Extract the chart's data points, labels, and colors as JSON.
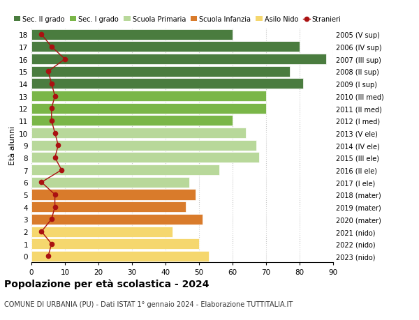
{
  "ages": [
    18,
    17,
    16,
    15,
    14,
    13,
    12,
    11,
    10,
    9,
    8,
    7,
    6,
    5,
    4,
    3,
    2,
    1,
    0
  ],
  "bar_values": [
    60,
    80,
    88,
    77,
    81,
    70,
    70,
    60,
    64,
    67,
    68,
    56,
    47,
    49,
    46,
    51,
    42,
    50,
    53
  ],
  "stranieri": [
    3,
    6,
    10,
    5,
    6,
    7,
    6,
    6,
    7,
    8,
    7,
    9,
    3,
    7,
    7,
    6,
    3,
    6,
    5
  ],
  "bar_colors": [
    "#4a7c3f",
    "#4a7c3f",
    "#4a7c3f",
    "#4a7c3f",
    "#4a7c3f",
    "#7ab648",
    "#7ab648",
    "#7ab648",
    "#b8d89a",
    "#b8d89a",
    "#b8d89a",
    "#b8d89a",
    "#b8d89a",
    "#d97b2b",
    "#d97b2b",
    "#d97b2b",
    "#f5d76e",
    "#f5d76e",
    "#f5d76e"
  ],
  "right_labels": [
    "2005 (V sup)",
    "2006 (IV sup)",
    "2007 (III sup)",
    "2008 (II sup)",
    "2009 (I sup)",
    "2010 (III med)",
    "2011 (II med)",
    "2012 (I med)",
    "2013 (V ele)",
    "2014 (IV ele)",
    "2015 (III ele)",
    "2016 (II ele)",
    "2017 (I ele)",
    "2018 (mater)",
    "2019 (mater)",
    "2020 (mater)",
    "2021 (nido)",
    "2022 (nido)",
    "2023 (nido)"
  ],
  "legend_labels": [
    "Sec. II grado",
    "Sec. I grado",
    "Scuola Primaria",
    "Scuola Infanzia",
    "Asilo Nido",
    "Stranieri"
  ],
  "legend_colors": [
    "#4a7c3f",
    "#7ab648",
    "#b8d89a",
    "#d97b2b",
    "#f5d76e",
    "#cc1111"
  ],
  "title": "Popolazione per età scolastica - 2024",
  "subtitle": "COMUNE DI URBANIA (PU) - Dati ISTAT 1° gennaio 2024 - Elaborazione TUTTITALIA.IT",
  "ylabel_left": "Età alunni",
  "xlim": [
    0,
    90
  ],
  "xticks": [
    0,
    10,
    20,
    30,
    40,
    50,
    60,
    70,
    80,
    90
  ],
  "stranieri_color": "#aa1111",
  "background_color": "#ffffff",
  "bar_height": 0.85
}
